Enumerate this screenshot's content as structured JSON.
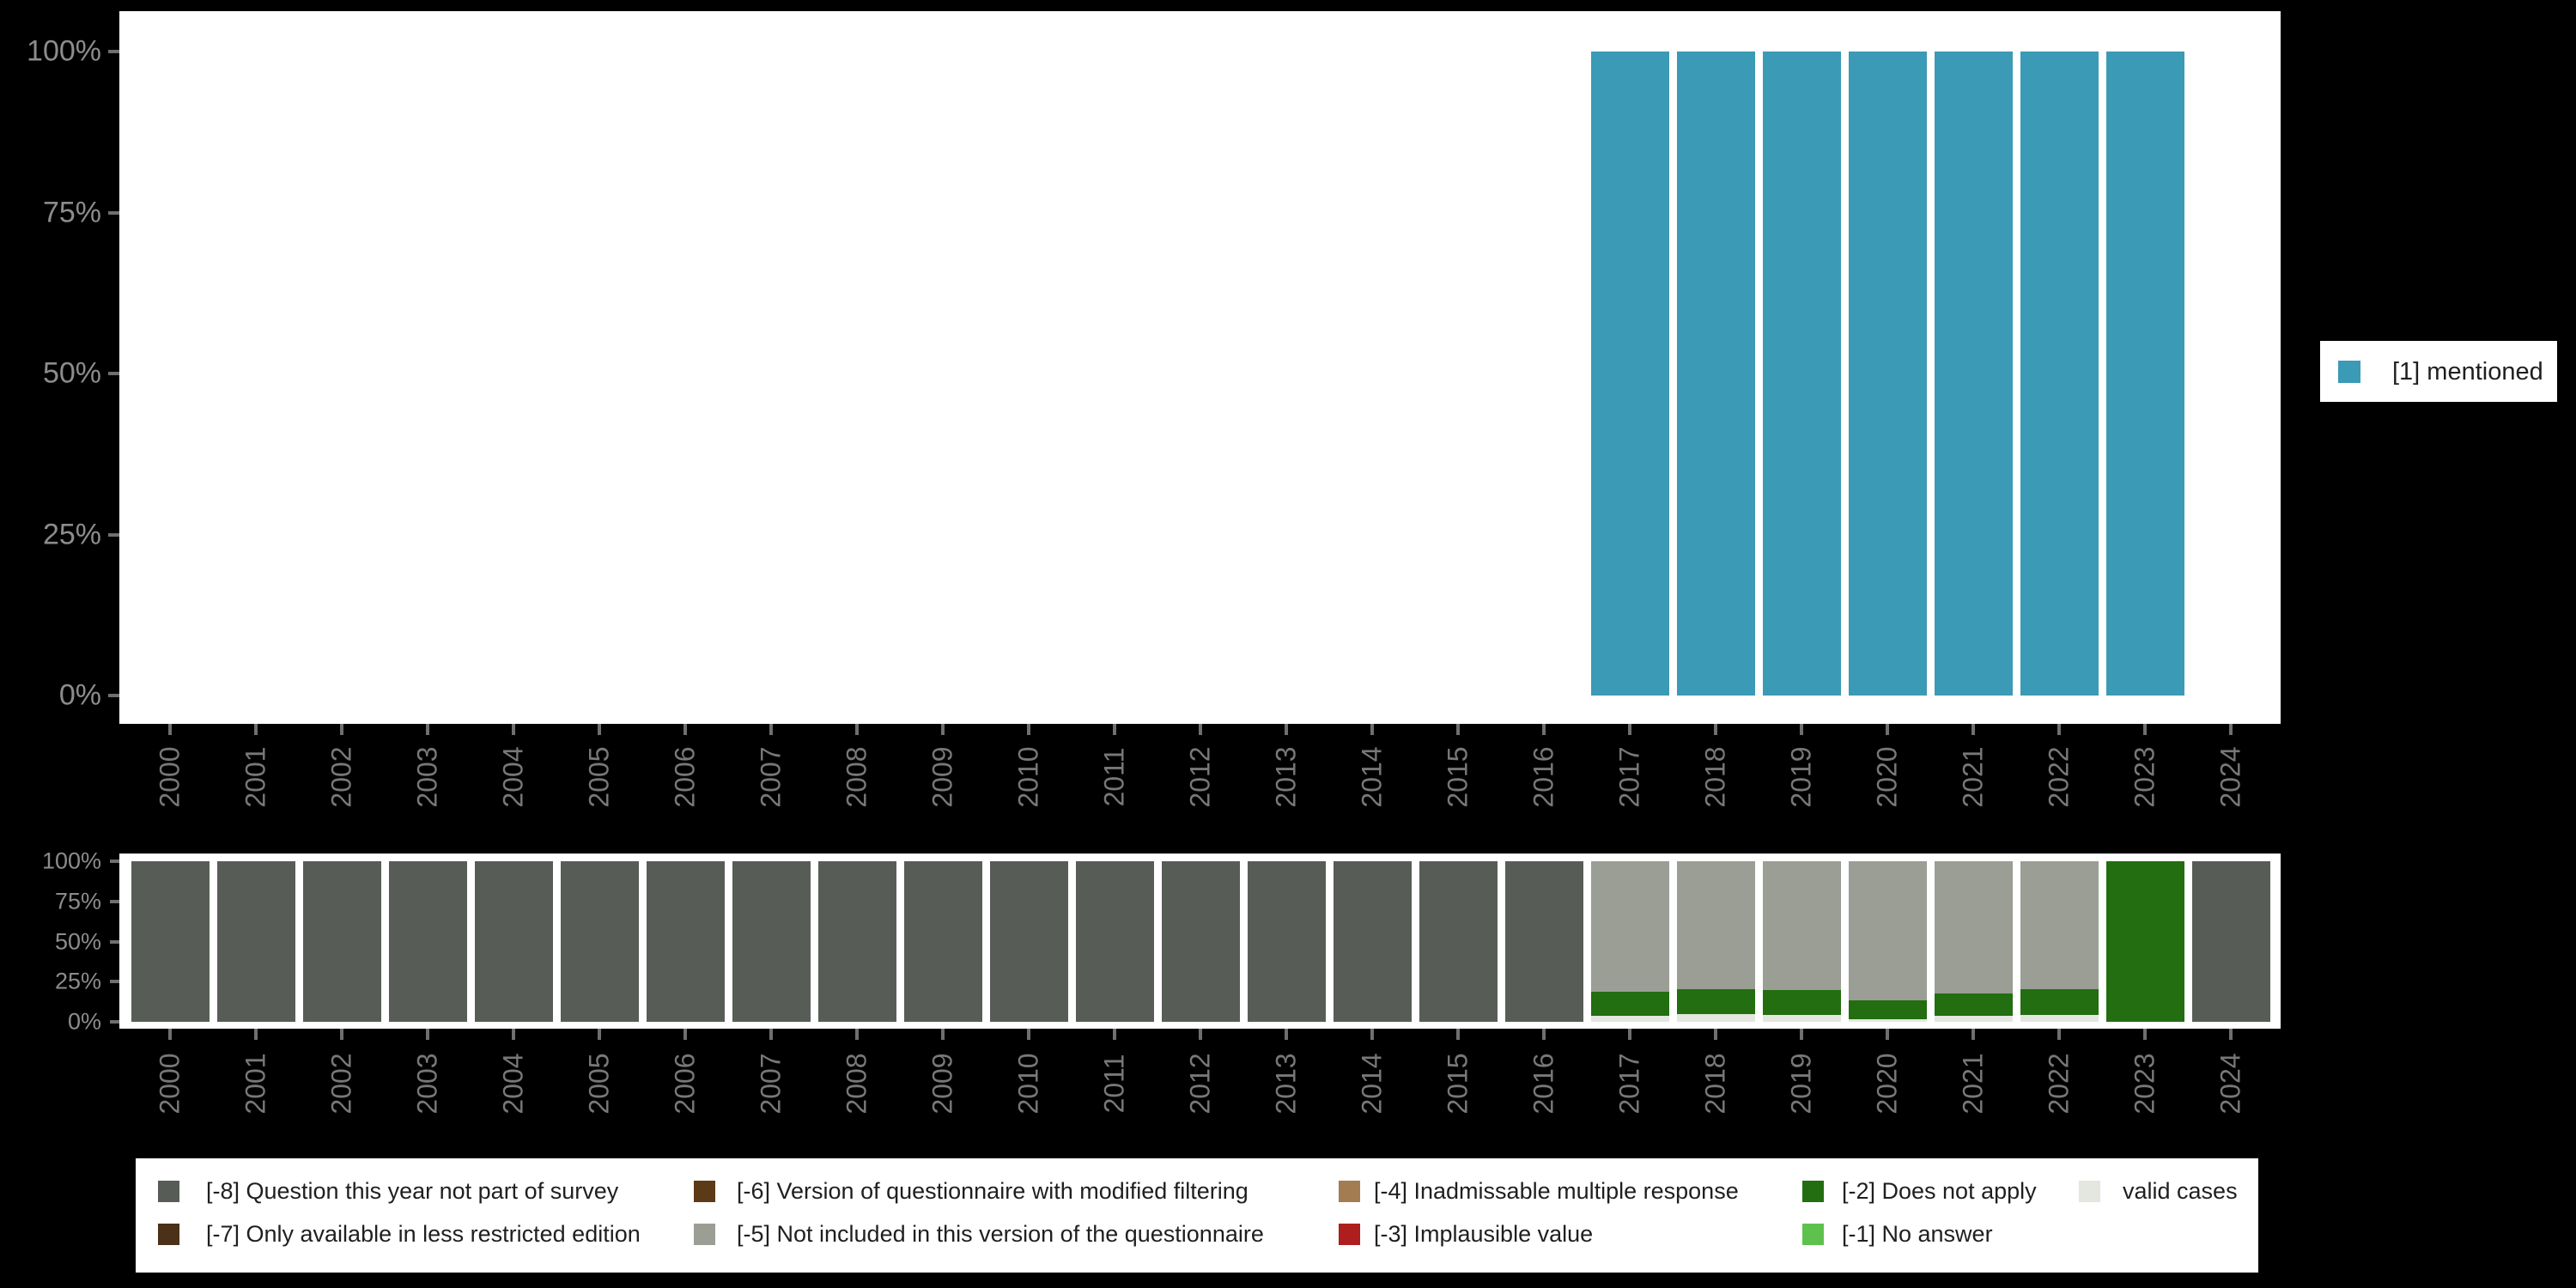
{
  "yticks_labels": [
    "0%",
    "25%",
    "50%",
    "75%",
    "100%"
  ],
  "categories": [
    "2000",
    "2001",
    "2002",
    "2003",
    "2004",
    "2005",
    "2006",
    "2007",
    "2008",
    "2009",
    "2010",
    "2011",
    "2012",
    "2013",
    "2014",
    "2015",
    "2016",
    "2017",
    "2018",
    "2019",
    "2020",
    "2021",
    "2022",
    "2023",
    "2024"
  ],
  "top_legend": {
    "label": "[1] mentioned",
    "color": "#3B9AB5"
  },
  "bottom_legend": {
    "items": [
      {
        "label": "[-8] Question this year not part of survey",
        "color": "#575D56"
      },
      {
        "label": "[-7] Only available in less restricted edition",
        "color": "#4B3117"
      },
      {
        "label": "[-6] Version of questionnaire with modified filtering",
        "color": "#5D3A17"
      },
      {
        "label": "[-5] Not included in this version of the questionnaire",
        "color": "#9A9E94"
      },
      {
        "label": "[-4] Inadmissable multiple response",
        "color": "#A37C51"
      },
      {
        "label": "[-3] Implausible value",
        "color": "#AE1E1E"
      },
      {
        "label": "[-2] Does not apply",
        "color": "#226E10"
      },
      {
        "label": "[-1] No answer",
        "color": "#5EC14E"
      },
      {
        "label": "valid cases",
        "color": "#E3E7DF"
      }
    ]
  },
  "chart_data": [
    {
      "id": "top",
      "type": "bar",
      "title": "",
      "xlabel": "",
      "ylabel": "",
      "ylim": [
        0,
        100
      ],
      "grid": false,
      "legend_position": "right",
      "yticks": [
        "0%",
        "25%",
        "50%",
        "75%",
        "100%"
      ],
      "categories": [
        "2000",
        "2001",
        "2002",
        "2003",
        "2004",
        "2005",
        "2006",
        "2007",
        "2008",
        "2009",
        "2010",
        "2011",
        "2012",
        "2013",
        "2014",
        "2015",
        "2016",
        "2017",
        "2018",
        "2019",
        "2020",
        "2021",
        "2022",
        "2023",
        "2024"
      ],
      "series": [
        {
          "name": "[1] mentioned",
          "color": "#3B9AB5",
          "values": [
            0,
            0,
            0,
            0,
            0,
            0,
            0,
            0,
            0,
            0,
            0,
            0,
            0,
            0,
            0,
            0,
            0,
            100,
            100,
            100,
            100,
            100,
            100,
            100,
            0
          ]
        }
      ]
    },
    {
      "id": "bottom",
      "type": "stacked-bar",
      "title": "",
      "xlabel": "",
      "ylabel": "",
      "ylim": [
        0,
        100
      ],
      "grid": false,
      "legend_position": "bottom",
      "yticks": [
        "0%",
        "25%",
        "50%",
        "75%",
        "100%"
      ],
      "categories": [
        "2000",
        "2001",
        "2002",
        "2003",
        "2004",
        "2005",
        "2006",
        "2007",
        "2008",
        "2009",
        "2010",
        "2011",
        "2012",
        "2013",
        "2014",
        "2015",
        "2016",
        "2017",
        "2018",
        "2019",
        "2020",
        "2021",
        "2022",
        "2023",
        "2024"
      ],
      "series": [
        {
          "name": "valid cases",
          "color": "#E3E7DF",
          "values": [
            0,
            0,
            0,
            0,
            0,
            0,
            0,
            0,
            0,
            0,
            0,
            0,
            0,
            0,
            0,
            0,
            0,
            4,
            5,
            4.5,
            1.5,
            3.5,
            4.5,
            0,
            0
          ]
        },
        {
          "name": "[-2] Does not apply",
          "color": "#226E10",
          "values": [
            0,
            0,
            0,
            0,
            0,
            0,
            0,
            0,
            0,
            0,
            0,
            0,
            0,
            0,
            0,
            0,
            0,
            14.5,
            15.5,
            15.5,
            12,
            14,
            16,
            100,
            0
          ]
        },
        {
          "name": "[-5] Not included in this version of the questionnaire",
          "color": "#9A9E94",
          "values": [
            0,
            0,
            0,
            0,
            0,
            0,
            0,
            0,
            0,
            0,
            0,
            0,
            0,
            0,
            0,
            0,
            0,
            81.5,
            79.5,
            80,
            86.5,
            82.5,
            79.5,
            0,
            0
          ]
        },
        {
          "name": "[-8] Question this year not part of survey",
          "color": "#575D56",
          "values": [
            100,
            100,
            100,
            100,
            100,
            100,
            100,
            100,
            100,
            100,
            100,
            100,
            100,
            100,
            100,
            100,
            100,
            0,
            0,
            0,
            0,
            0,
            0,
            0,
            100
          ]
        }
      ]
    }
  ]
}
